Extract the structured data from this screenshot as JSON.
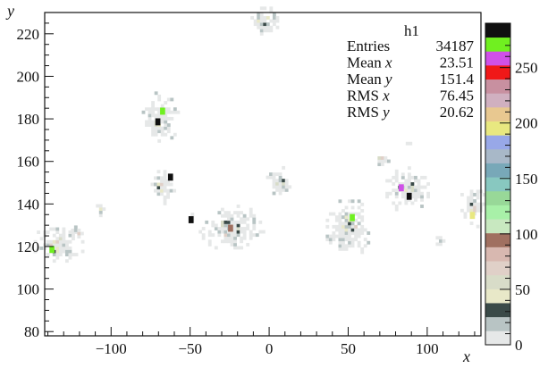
{
  "chart_data": {
    "type": "heatmap",
    "title": "",
    "xlabel": "x",
    "ylabel": "y",
    "xlim": [
      -142,
      134
    ],
    "ylim": [
      78,
      230
    ],
    "x_ticks": [
      {
        "value": -100,
        "label": "−100"
      },
      {
        "value": -50,
        "label": "−50"
      },
      {
        "value": 0,
        "label": "0"
      },
      {
        "value": 50,
        "label": "50"
      },
      {
        "value": 100,
        "label": "100"
      }
    ],
    "y_ticks": [
      {
        "value": 80,
        "label": "80"
      },
      {
        "value": 100,
        "label": "100"
      },
      {
        "value": 120,
        "label": "120"
      },
      {
        "value": 140,
        "label": "140"
      },
      {
        "value": 160,
        "label": "160"
      },
      {
        "value": 180,
        "label": "180"
      },
      {
        "value": 200,
        "label": "200"
      },
      {
        "value": 220,
        "label": "220"
      }
    ],
    "z_range": [
      0,
      290
    ],
    "z_ticks": [
      {
        "value": 0,
        "label": "0"
      },
      {
        "value": 50,
        "label": "50"
      },
      {
        "value": 100,
        "label": "100"
      },
      {
        "value": 150,
        "label": "150"
      },
      {
        "value": 200,
        "label": "200"
      },
      {
        "value": 250,
        "label": "250"
      }
    ],
    "palette": [
      "#e6e8e8",
      "#b8c4c4",
      "#3a4a48",
      "#e8e8c8",
      "#d8dcc8",
      "#e0d0c8",
      "#d8b8b0",
      "#a07060",
      "#c8e8c0",
      "#a8f0a8",
      "#98d898",
      "#88c8c0",
      "#78a8b8",
      "#a8b8c8",
      "#98a8e8",
      "#e8e880",
      "#e8c890",
      "#d0b0c0",
      "#c890a0",
      "#f01818",
      "#d050e8",
      "#70f020",
      "#101010"
    ],
    "blobs": [
      {
        "x": -70,
        "y": 180,
        "rx": 7,
        "ry": 7,
        "peaks": [
          {
            "x": -71,
            "y": 178,
            "v": 280
          },
          {
            "x": -68,
            "y": 183,
            "v": 265
          }
        ]
      },
      {
        "x": -135,
        "y": 120,
        "rx": 10,
        "ry": 5,
        "peaks": [
          {
            "x": -138,
            "y": 118,
            "v": 270
          }
        ]
      },
      {
        "x": -25,
        "y": 128,
        "rx": 12,
        "ry": 6,
        "peaks": [
          {
            "x": -25,
            "y": 128,
            "v": 100
          }
        ]
      },
      {
        "x": 48,
        "y": 128,
        "rx": 9,
        "ry": 8,
        "peaks": [
          {
            "x": 52,
            "y": 133,
            "v": 275
          }
        ]
      },
      {
        "x": 86,
        "y": 146,
        "rx": 8,
        "ry": 6,
        "peaks": [
          {
            "x": 83,
            "y": 147,
            "v": 260
          },
          {
            "x": 88,
            "y": 143,
            "v": 280
          }
        ]
      },
      {
        "x": 5,
        "y": 150,
        "rx": 5,
        "ry": 4,
        "peaks": []
      },
      {
        "x": -68,
        "y": 147,
        "rx": 5,
        "ry": 5,
        "peaks": [
          {
            "x": -63,
            "y": 152,
            "v": 280
          }
        ]
      },
      {
        "x": -5,
        "y": 225,
        "rx": 6,
        "ry": 4,
        "peaks": []
      },
      {
        "x": 128,
        "y": 138,
        "rx": 5,
        "ry": 6,
        "peaks": [
          {
            "x": 128,
            "y": 134,
            "v": 200
          }
        ]
      },
      {
        "x": -50,
        "y": 132,
        "rx": 2,
        "ry": 2,
        "peaks": [
          {
            "x": -50,
            "y": 132,
            "v": 280
          }
        ]
      },
      {
        "x": -108,
        "y": 136,
        "rx": 2,
        "ry": 2,
        "peaks": []
      },
      {
        "x": 70,
        "y": 160,
        "rx": 3,
        "ry": 2,
        "peaks": []
      },
      {
        "x": 88,
        "y": 168,
        "rx": 2,
        "ry": 1,
        "peaks": []
      },
      {
        "x": 107,
        "y": 121,
        "rx": 2,
        "ry": 2,
        "peaks": []
      },
      {
        "x": -122,
        "y": 126,
        "rx": 3,
        "ry": 2,
        "peaks": []
      }
    ],
    "stats": {
      "name": "h1",
      "rows": [
        {
          "label": "Entries",
          "label_var": "",
          "value": "34187"
        },
        {
          "label": "Mean",
          "label_var": "x",
          "value": "23.51"
        },
        {
          "label": "Mean",
          "label_var": "y",
          "value": "151.4"
        },
        {
          "label": "RMS",
          "label_var": "x",
          "value": "76.45"
        },
        {
          "label": "RMS",
          "label_var": "y",
          "value": "20.62"
        }
      ]
    },
    "grid": false,
    "legend": "none"
  }
}
